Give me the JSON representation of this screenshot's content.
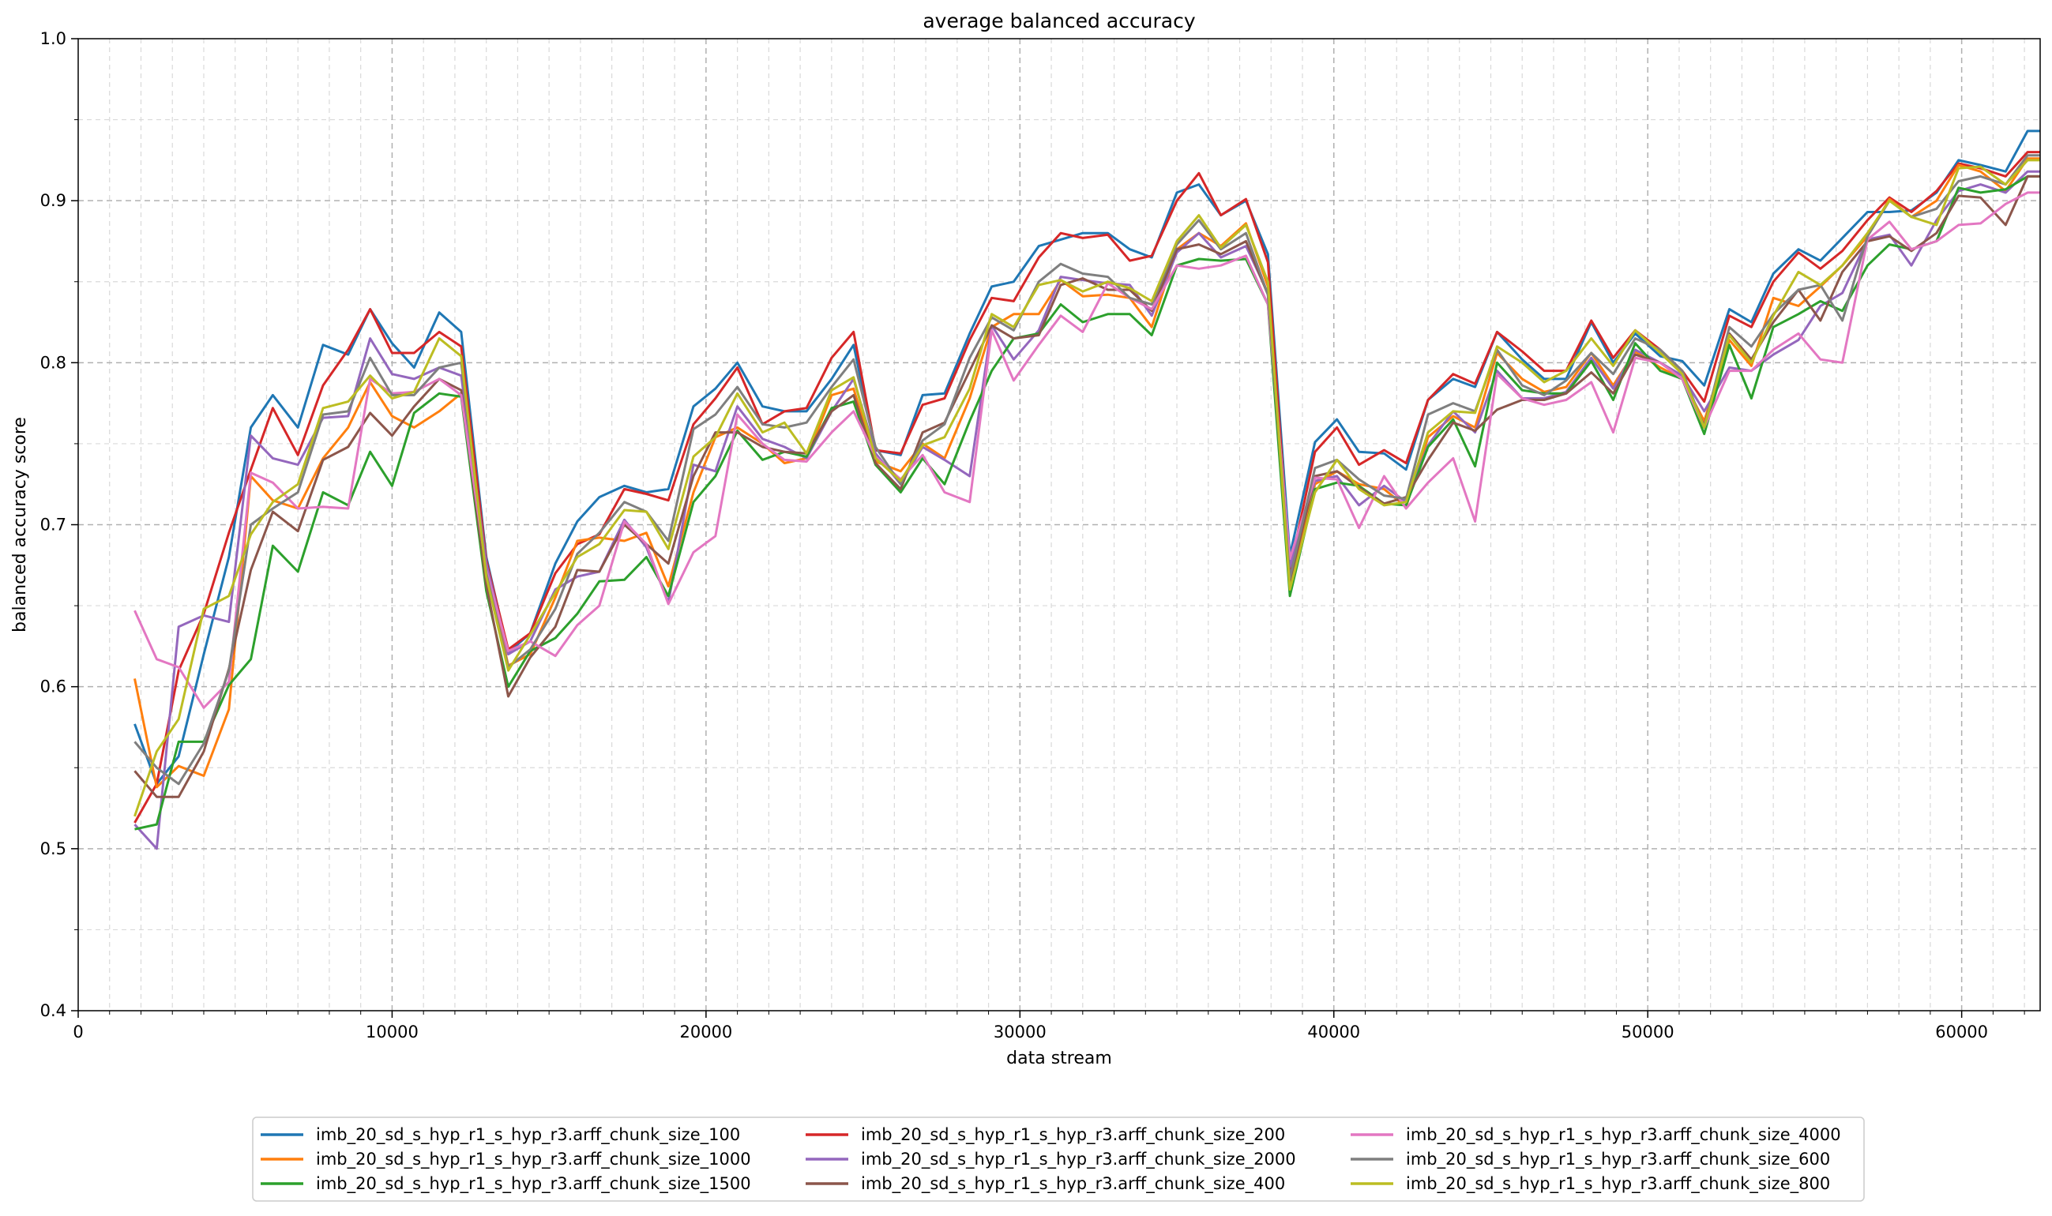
{
  "chart_data": {
    "type": "line",
    "title": "average balanced accuracy",
    "xlabel": "data stream",
    "ylabel": "balanced accuracy score",
    "xlim": [
      0,
      62500
    ],
    "ylim": [
      0.4,
      1.0
    ],
    "x_ticks": [
      0,
      10000,
      20000,
      30000,
      40000,
      50000,
      60000
    ],
    "x_tick_labels": [
      "0",
      "10000",
      "20000",
      "30000",
      "40000",
      "50000",
      "60000"
    ],
    "y_ticks": [
      0.4,
      0.5,
      0.6,
      0.7,
      0.8,
      0.9,
      1.0
    ],
    "y_tick_labels": [
      "0.4",
      "0.5",
      "0.6",
      "0.7",
      "0.8",
      "0.9",
      "1.0"
    ],
    "grid": true,
    "legend_position": "bottom-center",
    "x": [
      1800,
      2500,
      3200,
      4000,
      4800,
      5500,
      6200,
      7000,
      7800,
      8600,
      9300,
      10000,
      10700,
      11500,
      12200,
      13000,
      13700,
      14400,
      15200,
      15900,
      16600,
      17400,
      18100,
      18800,
      19600,
      20300,
      21000,
      21800,
      22500,
      23200,
      24000,
      24700,
      25400,
      26200,
      26900,
      27600,
      28400,
      29100,
      29800,
      30600,
      31300,
      32000,
      32800,
      33500,
      34200,
      35000,
      35700,
      36400,
      37200,
      37900,
      38600,
      39400,
      40100,
      40800,
      41600,
      42300,
      43000,
      43800,
      44500,
      45200,
      46000,
      46700,
      47400,
      48200,
      48900,
      49600,
      50400,
      51100,
      51800,
      52600,
      53300,
      54000,
      54800,
      55500,
      56200,
      57000,
      57700,
      58400,
      59200,
      59900,
      60600,
      61400,
      62100,
      62500
    ],
    "series": [
      {
        "name": "imb_20_sd_s_hyp_r1_s_hyp_r3.arff_chunk_size_100",
        "color": "#1f77b4",
        "values": [
          0.577,
          0.54,
          0.557,
          0.62,
          0.68,
          0.76,
          0.78,
          0.76,
          0.811,
          0.805,
          0.833,
          0.812,
          0.797,
          0.831,
          0.819,
          0.68,
          0.621,
          0.633,
          0.676,
          0.702,
          0.717,
          0.724,
          0.72,
          0.722,
          0.773,
          0.784,
          0.8,
          0.773,
          0.77,
          0.77,
          0.79,
          0.811,
          0.746,
          0.743,
          0.78,
          0.781,
          0.818,
          0.847,
          0.85,
          0.872,
          0.876,
          0.88,
          0.88,
          0.87,
          0.865,
          0.905,
          0.91,
          0.891,
          0.9,
          0.867,
          0.681,
          0.751,
          0.765,
          0.745,
          0.744,
          0.734,
          0.777,
          0.79,
          0.785,
          0.819,
          0.802,
          0.79,
          0.79,
          0.825,
          0.8,
          0.818,
          0.804,
          0.801,
          0.786,
          0.833,
          0.825,
          0.855,
          0.87,
          0.863,
          0.877,
          0.893,
          0.893,
          0.894,
          0.905,
          0.925,
          0.922,
          0.918,
          0.943,
          0.943
        ]
      },
      {
        "name": "imb_20_sd_s_hyp_r1_s_hyp_r3.arff_chunk_size_200",
        "color": "#d62728",
        "values": [
          0.516,
          0.54,
          0.61,
          0.645,
          0.695,
          0.734,
          0.772,
          0.743,
          0.786,
          0.808,
          0.833,
          0.806,
          0.806,
          0.819,
          0.81,
          0.678,
          0.623,
          0.633,
          0.67,
          0.688,
          0.694,
          0.722,
          0.719,
          0.715,
          0.762,
          0.778,
          0.797,
          0.762,
          0.77,
          0.772,
          0.803,
          0.819,
          0.746,
          0.744,
          0.774,
          0.778,
          0.814,
          0.84,
          0.838,
          0.865,
          0.88,
          0.877,
          0.879,
          0.863,
          0.866,
          0.9,
          0.917,
          0.891,
          0.901,
          0.862,
          0.672,
          0.745,
          0.76,
          0.737,
          0.746,
          0.738,
          0.777,
          0.793,
          0.787,
          0.819,
          0.807,
          0.795,
          0.795,
          0.826,
          0.803,
          0.82,
          0.808,
          0.795,
          0.776,
          0.829,
          0.822,
          0.85,
          0.868,
          0.858,
          0.869,
          0.888,
          0.902,
          0.893,
          0.906,
          0.923,
          0.92,
          0.915,
          0.93,
          0.93
        ]
      },
      {
        "name": "imb_20_sd_s_hyp_r1_s_hyp_r3.arff_chunk_size_1000",
        "color": "#ff7f0e",
        "values": [
          0.605,
          0.538,
          0.551,
          0.545,
          0.586,
          0.73,
          0.715,
          0.71,
          0.741,
          0.76,
          0.788,
          0.767,
          0.76,
          0.77,
          0.781,
          0.675,
          0.613,
          0.62,
          0.655,
          0.69,
          0.692,
          0.69,
          0.695,
          0.662,
          0.72,
          0.754,
          0.76,
          0.75,
          0.738,
          0.741,
          0.78,
          0.784,
          0.739,
          0.733,
          0.75,
          0.741,
          0.778,
          0.822,
          0.83,
          0.83,
          0.851,
          0.841,
          0.842,
          0.84,
          0.822,
          0.87,
          0.88,
          0.872,
          0.886,
          0.847,
          0.663,
          0.725,
          0.733,
          0.725,
          0.722,
          0.711,
          0.754,
          0.767,
          0.76,
          0.806,
          0.79,
          0.782,
          0.785,
          0.806,
          0.786,
          0.807,
          0.797,
          0.79,
          0.764,
          0.814,
          0.798,
          0.84,
          0.835,
          0.847,
          0.86,
          0.878,
          0.901,
          0.89,
          0.9,
          0.922,
          0.918,
          0.906,
          0.926,
          0.926
        ]
      },
      {
        "name": "imb_20_sd_s_hyp_r1_s_hyp_r3.arff_chunk_size_2000",
        "color": "#9467bd",
        "values": [
          0.515,
          0.5,
          0.637,
          0.644,
          0.64,
          0.755,
          0.741,
          0.737,
          0.766,
          0.767,
          0.815,
          0.793,
          0.79,
          0.797,
          0.792,
          0.676,
          0.62,
          0.628,
          0.66,
          0.668,
          0.671,
          0.703,
          0.686,
          0.652,
          0.737,
          0.733,
          0.773,
          0.753,
          0.748,
          0.741,
          0.77,
          0.79,
          0.744,
          0.725,
          0.748,
          0.74,
          0.73,
          0.823,
          0.802,
          0.82,
          0.853,
          0.851,
          0.849,
          0.848,
          0.829,
          0.868,
          0.88,
          0.865,
          0.872,
          0.843,
          0.674,
          0.727,
          0.73,
          0.712,
          0.724,
          0.714,
          0.749,
          0.77,
          0.757,
          0.795,
          0.778,
          0.778,
          0.782,
          0.803,
          0.784,
          0.808,
          0.8,
          0.792,
          0.77,
          0.797,
          0.795,
          0.805,
          0.814,
          0.835,
          0.843,
          0.876,
          0.879,
          0.86,
          0.888,
          0.906,
          0.91,
          0.905,
          0.918,
          0.918
        ]
      },
      {
        "name": "imb_20_sd_s_hyp_r1_s_hyp_r3.arff_chunk_size_1500",
        "color": "#2ca02c",
        "values": [
          0.512,
          0.515,
          0.566,
          0.566,
          0.601,
          0.617,
          0.687,
          0.671,
          0.72,
          0.712,
          0.745,
          0.724,
          0.769,
          0.781,
          0.779,
          0.659,
          0.6,
          0.622,
          0.63,
          0.645,
          0.665,
          0.666,
          0.68,
          0.656,
          0.714,
          0.73,
          0.758,
          0.74,
          0.745,
          0.742,
          0.772,
          0.776,
          0.737,
          0.72,
          0.741,
          0.725,
          0.764,
          0.795,
          0.815,
          0.818,
          0.836,
          0.825,
          0.83,
          0.83,
          0.817,
          0.86,
          0.864,
          0.863,
          0.864,
          0.836,
          0.656,
          0.722,
          0.726,
          0.724,
          0.713,
          0.712,
          0.748,
          0.765,
          0.736,
          0.8,
          0.783,
          0.781,
          0.781,
          0.801,
          0.777,
          0.812,
          0.795,
          0.79,
          0.756,
          0.811,
          0.778,
          0.822,
          0.83,
          0.838,
          0.832,
          0.86,
          0.873,
          0.87,
          0.875,
          0.908,
          0.905,
          0.907,
          0.915,
          0.915
        ]
      },
      {
        "name": "imb_20_sd_s_hyp_r1_s_hyp_r3.arff_chunk_size_400",
        "color": "#8c564b",
        "values": [
          0.548,
          0.532,
          0.532,
          0.56,
          0.611,
          0.672,
          0.708,
          0.696,
          0.74,
          0.748,
          0.769,
          0.755,
          0.773,
          0.79,
          0.783,
          0.663,
          0.594,
          0.618,
          0.637,
          0.672,
          0.671,
          0.7,
          0.688,
          0.676,
          0.73,
          0.757,
          0.757,
          0.748,
          0.745,
          0.744,
          0.77,
          0.78,
          0.738,
          0.722,
          0.757,
          0.763,
          0.795,
          0.823,
          0.815,
          0.817,
          0.848,
          0.852,
          0.845,
          0.845,
          0.832,
          0.87,
          0.873,
          0.867,
          0.875,
          0.842,
          0.665,
          0.73,
          0.733,
          0.723,
          0.713,
          0.717,
          0.74,
          0.763,
          0.758,
          0.771,
          0.777,
          0.777,
          0.781,
          0.794,
          0.781,
          0.805,
          0.8,
          0.79,
          0.761,
          0.818,
          0.802,
          0.825,
          0.845,
          0.826,
          0.856,
          0.875,
          0.878,
          0.869,
          0.88,
          0.903,
          0.902,
          0.885,
          0.915,
          0.915
        ]
      },
      {
        "name": "imb_20_sd_s_hyp_r1_s_hyp_r3.arff_chunk_size_4000",
        "color": "#e377c2",
        "values": [
          0.647,
          0.617,
          0.612,
          0.587,
          0.603,
          0.732,
          0.726,
          0.71,
          0.711,
          0.71,
          0.79,
          0.781,
          0.782,
          0.79,
          0.78,
          0.672,
          0.622,
          0.628,
          0.619,
          0.638,
          0.65,
          0.702,
          0.688,
          0.651,
          0.683,
          0.693,
          0.768,
          0.75,
          0.74,
          0.739,
          0.757,
          0.77,
          0.742,
          0.728,
          0.743,
          0.72,
          0.714,
          0.82,
          0.789,
          0.811,
          0.829,
          0.819,
          0.849,
          0.84,
          0.833,
          0.86,
          0.858,
          0.86,
          0.866,
          0.836,
          0.679,
          0.729,
          0.728,
          0.698,
          0.73,
          0.71,
          0.726,
          0.741,
          0.702,
          0.793,
          0.778,
          0.774,
          0.777,
          0.788,
          0.757,
          0.803,
          0.8,
          0.79,
          0.76,
          0.795,
          0.795,
          0.808,
          0.818,
          0.802,
          0.8,
          0.876,
          0.887,
          0.87,
          0.875,
          0.885,
          0.886,
          0.898,
          0.905,
          0.905
        ]
      },
      {
        "name": "imb_20_sd_s_hyp_r1_s_hyp_r3.arff_chunk_size_600",
        "color": "#7f7f7f",
        "values": [
          0.566,
          0.55,
          0.54,
          0.565,
          0.61,
          0.7,
          0.71,
          0.72,
          0.768,
          0.77,
          0.803,
          0.78,
          0.78,
          0.797,
          0.8,
          0.67,
          0.612,
          0.623,
          0.648,
          0.682,
          0.695,
          0.714,
          0.708,
          0.69,
          0.759,
          0.768,
          0.785,
          0.762,
          0.76,
          0.763,
          0.785,
          0.802,
          0.748,
          0.725,
          0.752,
          0.762,
          0.803,
          0.828,
          0.82,
          0.85,
          0.861,
          0.855,
          0.853,
          0.84,
          0.836,
          0.873,
          0.888,
          0.87,
          0.88,
          0.842,
          0.667,
          0.735,
          0.74,
          0.728,
          0.718,
          0.716,
          0.768,
          0.775,
          0.77,
          0.808,
          0.786,
          0.78,
          0.789,
          0.806,
          0.793,
          0.815,
          0.808,
          0.795,
          0.76,
          0.822,
          0.81,
          0.83,
          0.845,
          0.848,
          0.826,
          0.878,
          0.9,
          0.89,
          0.895,
          0.912,
          0.915,
          0.91,
          0.928,
          0.928
        ]
      },
      {
        "name": "imb_20_sd_s_hyp_r1_s_hyp_r3.arff_chunk_size_800",
        "color": "#bcbd22",
        "values": [
          0.52,
          0.56,
          0.58,
          0.648,
          0.656,
          0.694,
          0.714,
          0.725,
          0.772,
          0.776,
          0.792,
          0.778,
          0.782,
          0.815,
          0.804,
          0.668,
          0.61,
          0.632,
          0.658,
          0.68,
          0.688,
          0.709,
          0.708,
          0.685,
          0.742,
          0.754,
          0.781,
          0.757,
          0.763,
          0.744,
          0.783,
          0.791,
          0.741,
          0.727,
          0.749,
          0.754,
          0.784,
          0.83,
          0.822,
          0.848,
          0.851,
          0.844,
          0.85,
          0.846,
          0.838,
          0.875,
          0.891,
          0.871,
          0.885,
          0.85,
          0.66,
          0.72,
          0.74,
          0.722,
          0.712,
          0.714,
          0.757,
          0.77,
          0.769,
          0.81,
          0.8,
          0.788,
          0.795,
          0.815,
          0.798,
          0.82,
          0.806,
          0.793,
          0.76,
          0.817,
          0.8,
          0.829,
          0.856,
          0.848,
          0.86,
          0.88,
          0.9,
          0.89,
          0.885,
          0.92,
          0.921,
          0.91,
          0.925,
          0.925
        ]
      }
    ],
    "legend_order": [
      0,
      2,
      4,
      1,
      3,
      5,
      6,
      7,
      8
    ]
  }
}
